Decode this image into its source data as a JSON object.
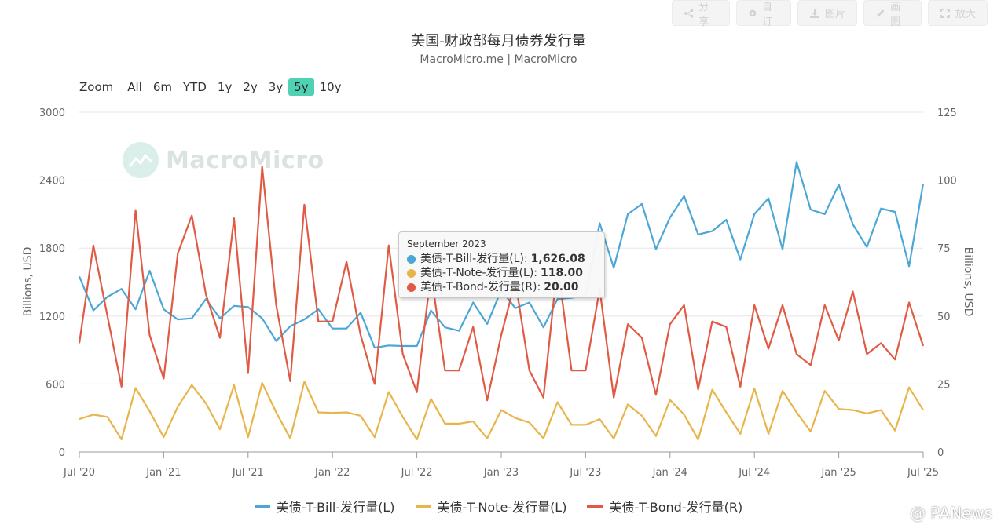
{
  "toolbar": {
    "share_label": "分享",
    "custom_label": "自订",
    "image_label": "图片",
    "draw_label": "画图",
    "enlarge_label": "放大"
  },
  "title": "美国-财政部每月债券发行量",
  "subtitle": "MacroMicro.me | MacroMicro",
  "zoom": {
    "label": "Zoom",
    "options": [
      "All",
      "6m",
      "YTD",
      "1y",
      "2y",
      "3y",
      "5y",
      "10y"
    ],
    "active": "5y"
  },
  "watermark": "MacroMicro",
  "tooltip": {
    "date": "September 2023",
    "rows": [
      {
        "label": "美债-T-Bill-发行量(L):",
        "value": "1,626.08",
        "color": "#4ba7d6"
      },
      {
        "label": "美债-T-Note-发行量(L):",
        "value": "118.00",
        "color": "#e8b54a"
      },
      {
        "label": "美债-T-Bond-发行量(R):",
        "value": "20.00",
        "color": "#e05a44"
      }
    ]
  },
  "panews": "@ PANews",
  "chart_data": {
    "type": "line",
    "x": [
      "2020-07",
      "2020-08",
      "2020-09",
      "2020-10",
      "2020-11",
      "2020-12",
      "2021-01",
      "2021-02",
      "2021-03",
      "2021-04",
      "2021-05",
      "2021-06",
      "2021-07",
      "2021-08",
      "2021-09",
      "2021-10",
      "2021-11",
      "2021-12",
      "2022-01",
      "2022-02",
      "2022-03",
      "2022-04",
      "2022-05",
      "2022-06",
      "2022-07",
      "2022-08",
      "2022-09",
      "2022-10",
      "2022-11",
      "2022-12",
      "2023-01",
      "2023-02",
      "2023-03",
      "2023-04",
      "2023-05",
      "2023-06",
      "2023-07",
      "2023-08",
      "2023-09",
      "2023-10",
      "2023-11",
      "2023-12",
      "2024-01",
      "2024-02",
      "2024-03",
      "2024-04",
      "2024-05",
      "2024-06",
      "2024-07",
      "2024-08",
      "2024-09",
      "2024-10",
      "2024-11",
      "2024-12",
      "2025-01",
      "2025-02",
      "2025-03",
      "2025-04",
      "2025-05",
      "2025-06",
      "2025-07"
    ],
    "x_ticks": [
      "Jul '20",
      "Jan '21",
      "Jul '21",
      "Jan '22",
      "Jul '22",
      "Jan '23",
      "Jul '23",
      "Jan '24",
      "Jul '24",
      "Jan '25",
      "Jul '25"
    ],
    "y_left": {
      "label": "Billions, USD",
      "lim": [
        0,
        3000
      ],
      "ticks": [
        0,
        600,
        1200,
        1800,
        2400,
        3000
      ]
    },
    "y_right": {
      "label": "Billions, USD",
      "lim": [
        0,
        125
      ],
      "ticks": [
        0,
        25,
        50,
        75,
        100,
        125
      ]
    },
    "grid": true,
    "legend_position": "bottom",
    "series": [
      {
        "name": "美债-T-Bill-发行量(L)",
        "axis": "left",
        "color": "#4ba7d6",
        "values": [
          1550,
          1250,
          1370,
          1440,
          1260,
          1600,
          1260,
          1170,
          1180,
          1350,
          1180,
          1290,
          1280,
          1180,
          980,
          1110,
          1170,
          1260,
          1090,
          1090,
          1230,
          920,
          940,
          935,
          935,
          1250,
          1100,
          1070,
          1320,
          1130,
          1430,
          1270,
          1320,
          1100,
          1350,
          1360,
          1380,
          2020,
          1626.08,
          2100,
          2190,
          1790,
          2070,
          2260,
          1920,
          1950,
          2050,
          1700,
          2100,
          2240,
          1790,
          2560,
          2140,
          2100,
          2360,
          2010,
          1810,
          2150,
          2120,
          1640,
          2370
        ]
      },
      {
        "name": "美债-T-Note-发行量(L)",
        "axis": "left",
        "color": "#e8b54a",
        "values": [
          290,
          330,
          310,
          110,
          565,
          360,
          130,
          400,
          590,
          430,
          200,
          590,
          130,
          610,
          350,
          120,
          620,
          350,
          345,
          350,
          320,
          130,
          530,
          310,
          110,
          470,
          250,
          250,
          270,
          120,
          370,
          300,
          260,
          120,
          440,
          240,
          240,
          290,
          118,
          420,
          320,
          140,
          460,
          330,
          110,
          550,
          350,
          160,
          560,
          160,
          540,
          350,
          180,
          540,
          380,
          370,
          340,
          370,
          190,
          570,
          370
        ]
      },
      {
        "name": "美债-T-Bond-发行量(R)",
        "axis": "right",
        "color": "#e05a44",
        "values": [
          40,
          76,
          50,
          24,
          89,
          43,
          27,
          73,
          87,
          58,
          42,
          86,
          29,
          105,
          54,
          26,
          91,
          48,
          48,
          70,
          43,
          25,
          76,
          36,
          22,
          66,
          30,
          30,
          46,
          19,
          43,
          63,
          30,
          20,
          69,
          30,
          30,
          60,
          20,
          47,
          42,
          21,
          47,
          54,
          23,
          48,
          46,
          24,
          54,
          38,
          54,
          36,
          32,
          54,
          41,
          59,
          36,
          40,
          34,
          55,
          39
        ]
      }
    ]
  }
}
